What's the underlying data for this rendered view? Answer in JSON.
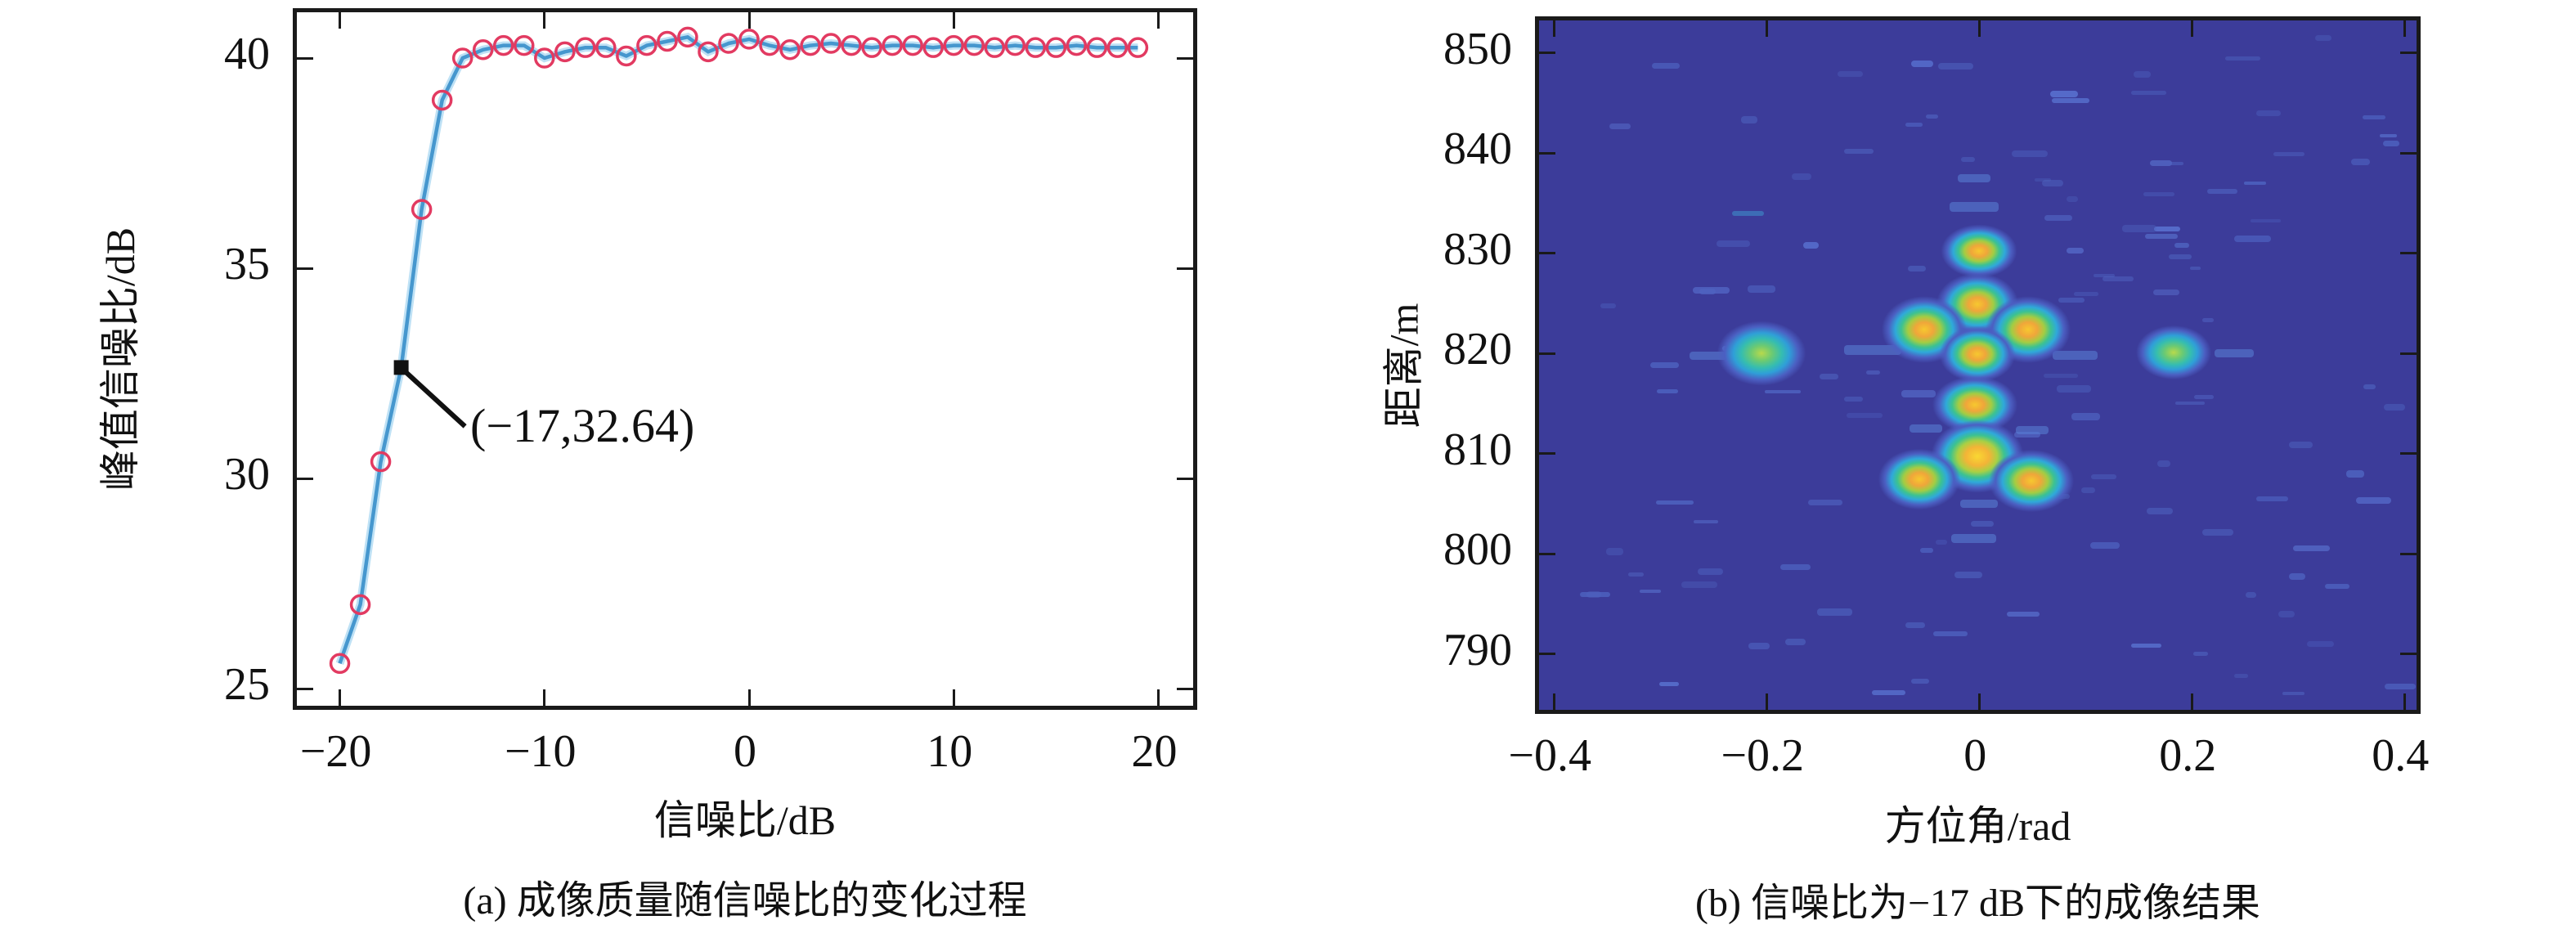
{
  "figure": {
    "panel_a": {
      "caption": "(a) 成像质量随信噪比的变化过程",
      "xlabel": "信噪比/dB",
      "ylabel": "峰值信噪比/dB",
      "annotation_label": "(−17,32.64)"
    },
    "panel_b": {
      "caption": "(b) 信噪比为−17 dB下的成像结果",
      "xlabel": "方位角/rad",
      "ylabel": "距离/m"
    }
  },
  "chart_data": [
    {
      "type": "line",
      "title": "(a) 成像质量随信噪比的变化过程",
      "xlabel": "信噪比/dB",
      "ylabel": "峰值信噪比/dB",
      "xlim": [
        -22.1,
        22.1
      ],
      "ylim": [
        24.4,
        41.09
      ],
      "grid": false,
      "line_color": "#4697ce",
      "line_halo_color": "rgba(125,195,235,0.5)",
      "marker_color": "#e23a61",
      "x_ticks": [
        {
          "v": -20,
          "label": "−20"
        },
        {
          "v": -10,
          "label": "−10"
        },
        {
          "v": 0,
          "label": "0"
        },
        {
          "v": 10,
          "label": "10"
        },
        {
          "v": 20,
          "label": "20"
        }
      ],
      "y_ticks": [
        {
          "v": 25,
          "label": "25"
        },
        {
          "v": 30,
          "label": "30"
        },
        {
          "v": 35,
          "label": "35"
        },
        {
          "v": 40,
          "label": "40"
        }
      ],
      "x": [
        -20,
        -19,
        -18,
        -17,
        -16,
        -15,
        -14,
        -13,
        -12,
        -11,
        -10,
        -9,
        -8,
        -7,
        -6,
        -5,
        -4,
        -3,
        -2,
        -1,
        0,
        1,
        2,
        3,
        4,
        5,
        6,
        7,
        8,
        9,
        10,
        11,
        12,
        13,
        14,
        15,
        16,
        17,
        18,
        19
      ],
      "y": [
        25.6,
        27.0,
        30.4,
        32.64,
        36.4,
        39.0,
        40.0,
        40.2,
        40.3,
        40.3,
        40.0,
        40.15,
        40.25,
        40.25,
        40.05,
        40.3,
        40.4,
        40.5,
        40.15,
        40.35,
        40.45,
        40.3,
        40.2,
        40.3,
        40.35,
        40.3,
        40.25,
        40.3,
        40.3,
        40.25,
        40.3,
        40.3,
        40.25,
        40.3,
        40.25,
        40.25,
        40.3,
        40.25,
        40.25,
        40.25
      ],
      "annotation": {
        "x": -17,
        "y": 32.64,
        "label": "(−17,32.64)",
        "marker": "black-square"
      }
    },
    {
      "type": "heatmap",
      "title": "(b) 信噪比为−17 dB下的成像结果",
      "xlabel": "方位角/rad",
      "ylabel": "距离/m",
      "xlim": [
        -0.414,
        0.419
      ],
      "ylim": [
        783.6,
        853.24
      ],
      "background_color": "#3c3c9a",
      "noise_color": "#4e63c0",
      "colormap": "parula-like (blue → cyan → green → orange-yellow)",
      "x_ticks": [
        {
          "v": -0.4,
          "label": "−0.4"
        },
        {
          "v": -0.2,
          "label": "−0.2"
        },
        {
          "v": 0,
          "label": "0"
        },
        {
          "v": 0.2,
          "label": "0.2"
        },
        {
          "v": 0.4,
          "label": "0.4"
        }
      ],
      "y_ticks": [
        {
          "v": 850,
          "label": "850"
        },
        {
          "v": 840,
          "label": "840"
        },
        {
          "v": 830,
          "label": "830"
        },
        {
          "v": 820,
          "label": "820"
        },
        {
          "v": 810,
          "label": "810"
        },
        {
          "v": 800,
          "label": "800"
        },
        {
          "v": 790,
          "label": "790"
        }
      ],
      "targets": [
        {
          "azimuth": 0.0,
          "range": 830.2,
          "intensity": "hot",
          "w": 100,
          "h": 70
        },
        {
          "azimuth": -0.002,
          "range": 824.9,
          "intensity": "hot",
          "w": 108,
          "h": 82
        },
        {
          "azimuth": -0.052,
          "range": 822.4,
          "intensity": "hot",
          "w": 112,
          "h": 88
        },
        {
          "azimuth": 0.046,
          "range": 822.4,
          "intensity": "hot",
          "w": 112,
          "h": 88
        },
        {
          "azimuth": -0.002,
          "range": 819.9,
          "intensity": "hot",
          "w": 100,
          "h": 74
        },
        {
          "azimuth": -0.004,
          "range": 814.9,
          "intensity": "hot",
          "w": 112,
          "h": 76
        },
        {
          "azimuth": -0.002,
          "range": 809.7,
          "intensity": "hot2",
          "w": 122,
          "h": 96
        },
        {
          "azimuth": -0.056,
          "range": 807.4,
          "intensity": "hot",
          "w": 108,
          "h": 80
        },
        {
          "azimuth": 0.049,
          "range": 807.3,
          "intensity": "hot",
          "w": 112,
          "h": 82
        },
        {
          "azimuth": -0.205,
          "range": 820.0,
          "intensity": "grn",
          "w": 118,
          "h": 86
        },
        {
          "azimuth": 0.183,
          "range": 820.1,
          "intensity": "grn",
          "w": 100,
          "h": 72
        }
      ]
    }
  ]
}
